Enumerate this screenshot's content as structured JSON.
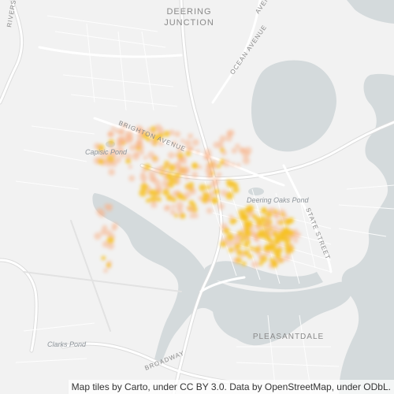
{
  "map": {
    "labels": {
      "deering": "DEERING",
      "junction": "JUNCTION",
      "ocean_avenue_1": "AVENUE",
      "ocean_avenue_2": "OCEAN AVENUE",
      "riverside": "RIVERS",
      "brighton": "BRIGHTON AVENUE",
      "capisic_pond": "Capisic Pond",
      "deering_oaks_pond": "Deering Oaks Pond",
      "state_street": "STATE STREET",
      "pleasantdale": "PLEASANTDALE",
      "clarks_pond": "Clarks Pond",
      "broadway": "BROADWAY"
    },
    "colors": {
      "land": "#f2f2f2",
      "water": "#d4dadc",
      "road": "#ffffff",
      "road_casing": "#dcdcdc",
      "heat_low": "#f8b48a",
      "heat_high": "#f7c224"
    }
  },
  "attribution": "Map tiles by Carto, under CC BY 3.0. Data by OpenStreetMap, under ODbL."
}
